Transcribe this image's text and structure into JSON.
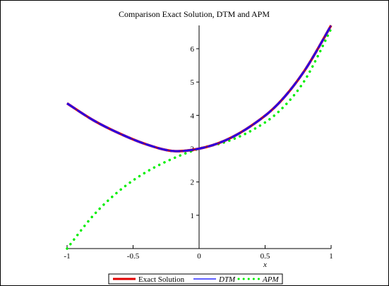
{
  "chart_data": {
    "type": "line",
    "title": "Comparison Exact Solution, DTM and APM",
    "xlabel": "x",
    "ylabel": "",
    "xlim": [
      -1,
      1
    ],
    "ylim": [
      0,
      6.7
    ],
    "x_ticks": [
      -1,
      -0.5,
      0,
      0.5,
      1
    ],
    "x_tick_labels": [
      "-1",
      "-0.5",
      "0",
      "0.5",
      "1"
    ],
    "y_ticks": [
      1,
      2,
      3,
      4,
      5,
      6
    ],
    "y_tick_labels": [
      "1",
      "2",
      "3",
      "4",
      "5",
      "6"
    ],
    "grid": false,
    "legend_position": "bottom",
    "series": [
      {
        "name": "Exact Solution",
        "style": "solid-thick",
        "color": "#e00000",
        "x": [
          -1,
          -0.8,
          -0.6,
          -0.4,
          -0.2,
          0,
          0.2,
          0.4,
          0.6,
          0.8,
          1
        ],
        "values": [
          4.36,
          3.85,
          3.45,
          3.13,
          2.93,
          3.0,
          3.25,
          3.7,
          4.35,
          5.35,
          6.7
        ]
      },
      {
        "name": "DTM",
        "style": "solid-thin",
        "color": "#0000ff",
        "x": [
          -1,
          -0.8,
          -0.6,
          -0.4,
          -0.2,
          0,
          0.2,
          0.4,
          0.6,
          0.8,
          1
        ],
        "values": [
          4.36,
          3.85,
          3.45,
          3.13,
          2.93,
          3.0,
          3.25,
          3.7,
          4.35,
          5.35,
          6.7
        ]
      },
      {
        "name": "APM",
        "style": "dotted",
        "color": "#00ee00",
        "x": [
          -1,
          -0.8,
          -0.6,
          -0.4,
          -0.2,
          0,
          0.2,
          0.4,
          0.6,
          0.8,
          1
        ],
        "values": [
          0.0,
          1.0,
          1.75,
          2.3,
          2.7,
          3.0,
          3.2,
          3.55,
          4.1,
          5.05,
          6.6
        ]
      }
    ]
  },
  "legend": {
    "items": [
      "Exact Solution",
      "DTM",
      "APM"
    ]
  },
  "colors": {
    "exact": "#e00000",
    "dtm": "#0000ff",
    "apm": "#00ee00",
    "overlap": "#6a0dad"
  }
}
